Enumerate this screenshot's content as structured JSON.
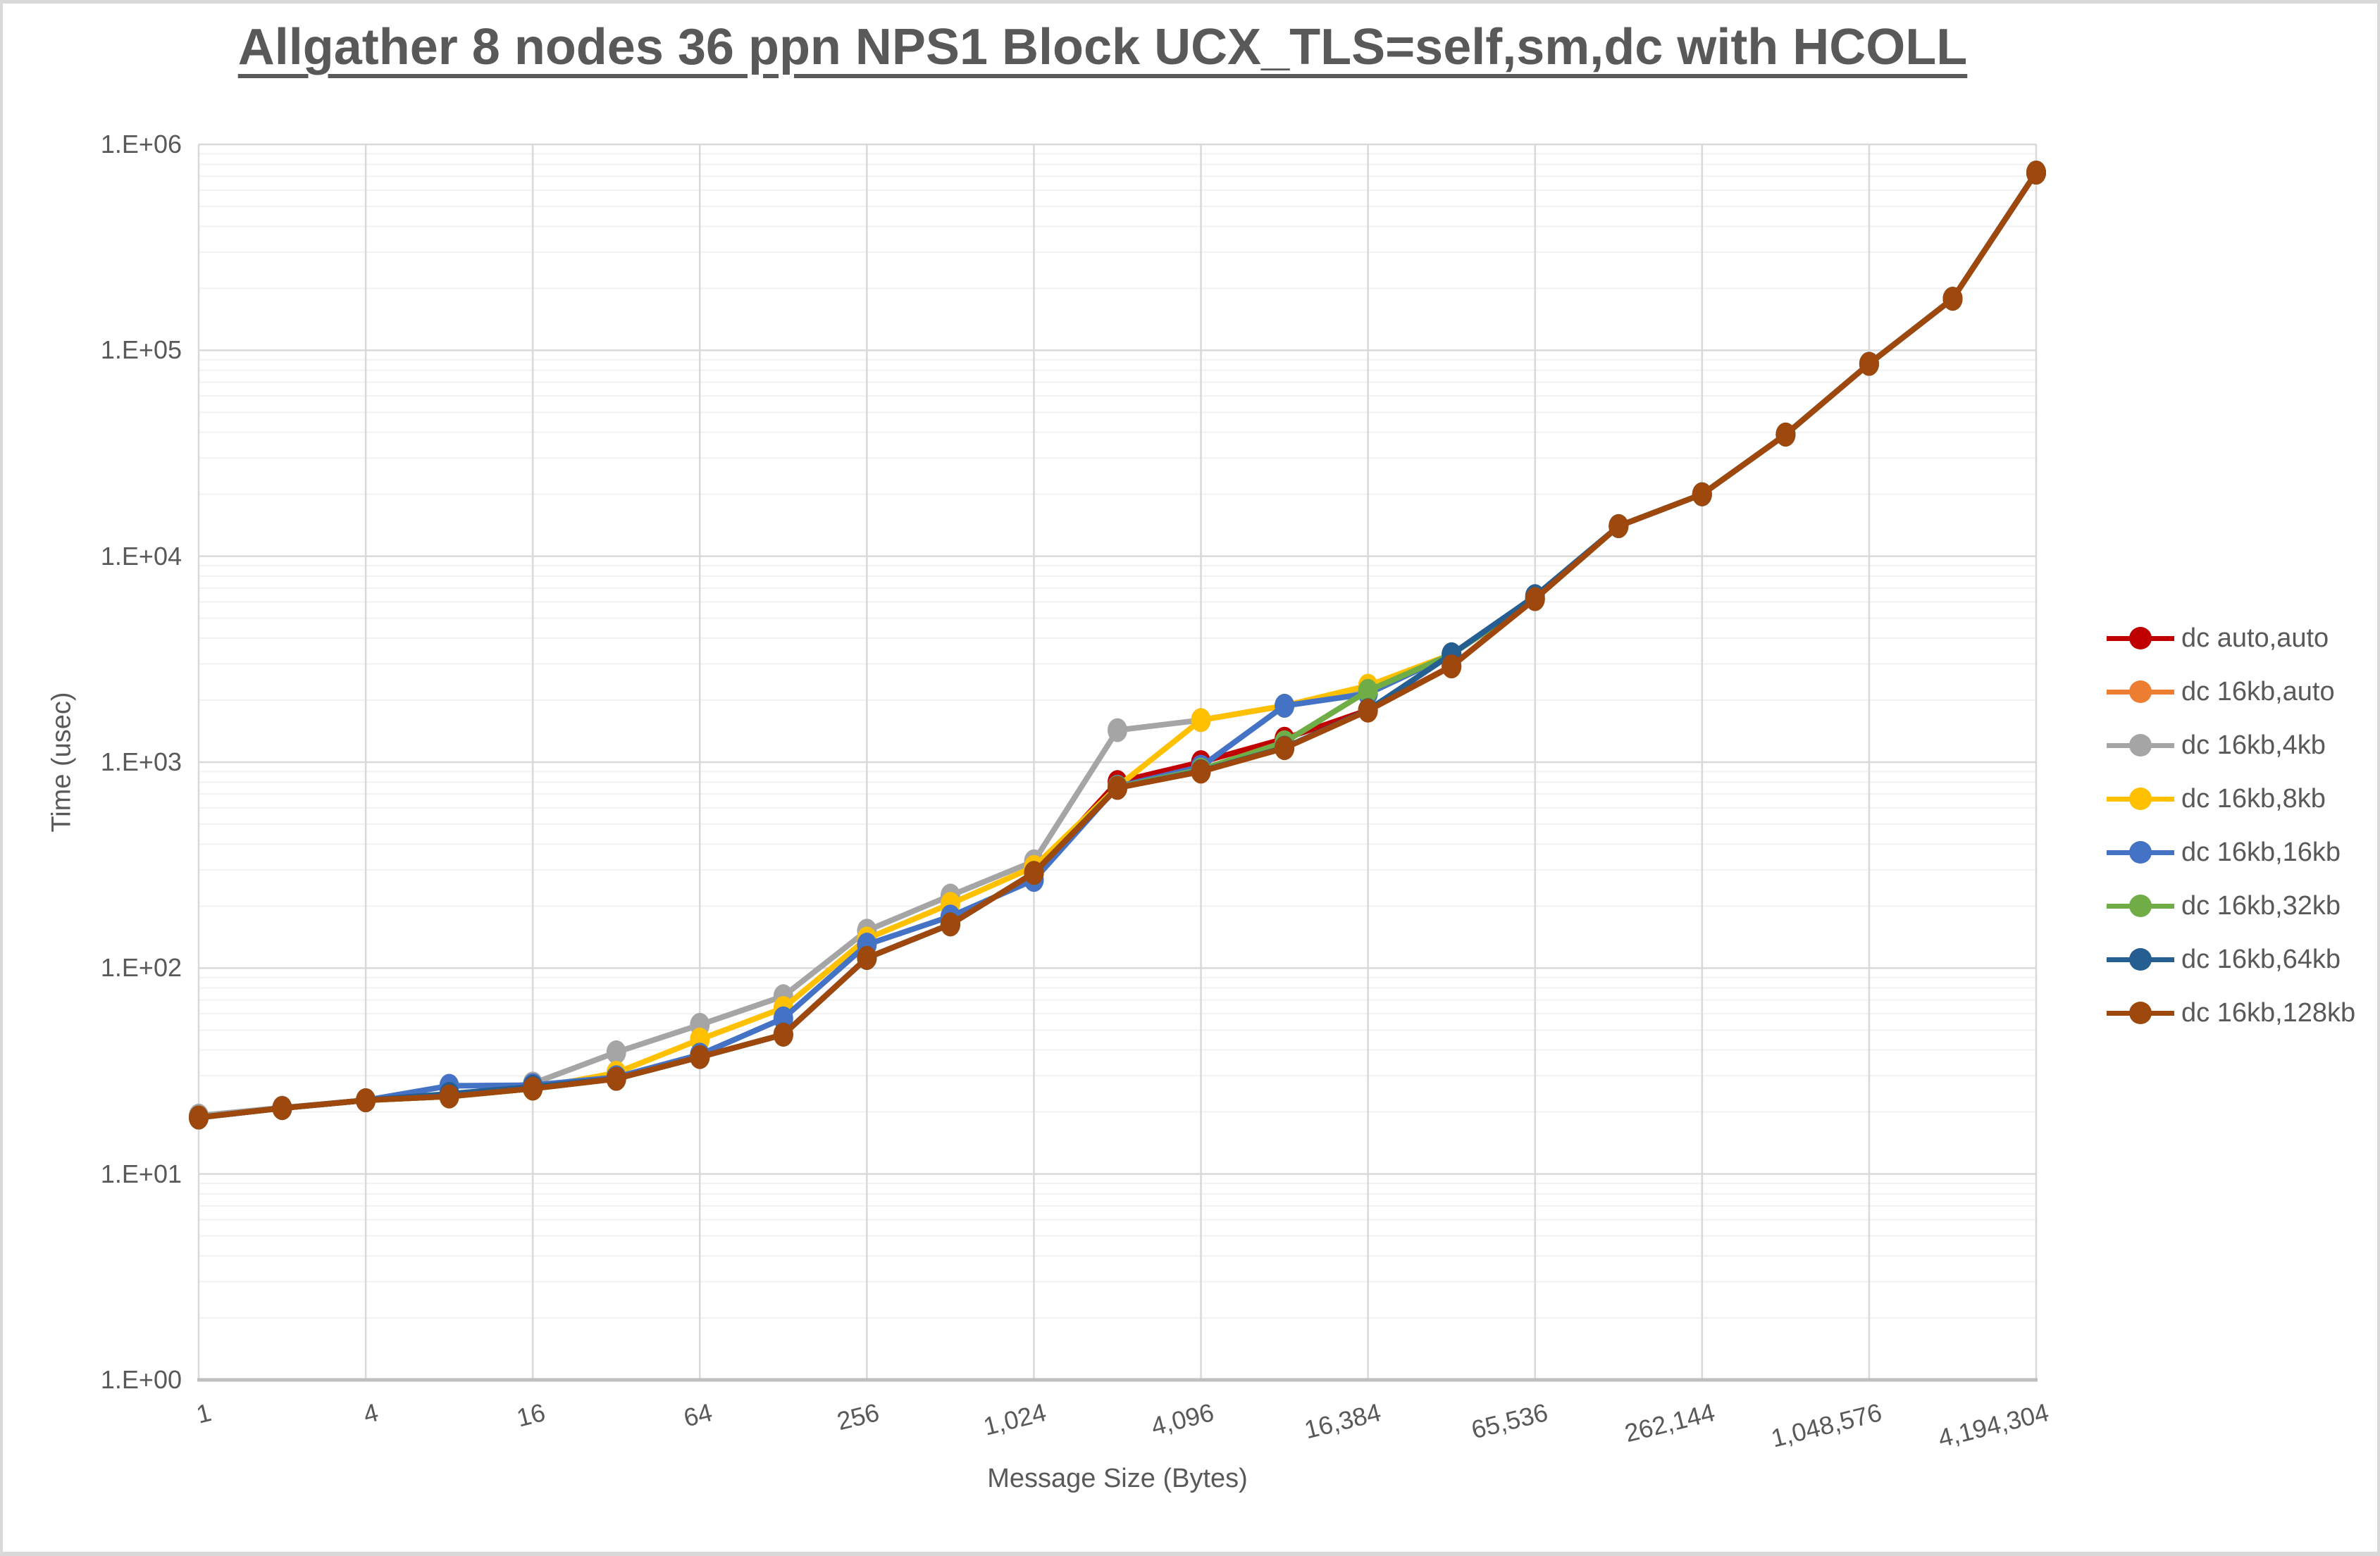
{
  "title": "Allgather 8 nodes 36 ppn NPS1 Block UCX_TLS=self,sm,dc with HCOLL",
  "colors": {
    "text": "#595959",
    "frame": "#D9D9D9",
    "plot_background": "#FFFFFF",
    "major_grid": "#D9D9D9",
    "minor_grid": "#F2F2F2",
    "axis_line": "#BFBFBF"
  },
  "chart_data": {
    "type": "line",
    "title": "Allgather 8 nodes 36 ppn NPS1 Block UCX_TLS=self,sm,dc with HCOLL",
    "xlabel": "Message Size (Bytes)",
    "ylabel": "Time (usec)",
    "x_scale": "log2",
    "y_scale": "log10",
    "ylim": [
      1,
      1000000
    ],
    "grid": "major-and-log-minor",
    "legend_position": "right",
    "y_tick_labels": [
      "1.E+00",
      "1.E+01",
      "1.E+02",
      "1.E+03",
      "1.E+04",
      "1.E+05",
      "1.E+06"
    ],
    "x_tick_values": [
      1,
      4,
      16,
      64,
      256,
      1024,
      4096,
      16384,
      65536,
      262144,
      1048576,
      4194304
    ],
    "x_tick_labels": [
      "1",
      "4",
      "16",
      "64",
      "256",
      "1,024",
      "4,096",
      "16,384",
      "65,536",
      "262,144",
      "1,048,576",
      "4,194,304"
    ],
    "x": [
      1,
      2,
      4,
      8,
      16,
      32,
      64,
      128,
      256,
      512,
      1024,
      2048,
      4096,
      8192,
      16384,
      32768,
      65536,
      131072,
      262144,
      524288,
      1048576,
      2097152,
      4194304
    ],
    "series": [
      {
        "name": "dc auto,auto",
        "color": "#C00000",
        "values": [
          18.8,
          20.9,
          22.8,
          23.8,
          26,
          29,
          37,
          47.5,
          112,
          163,
          290,
          800,
          1000,
          1300,
          1790,
          2930,
          6200,
          14000,
          20000,
          39000,
          86000,
          178000,
          730000
        ]
      },
      {
        "name": "dc 16kb,auto",
        "color": "#ED7D31",
        "values": [
          18.8,
          20.9,
          22.8,
          23.8,
          26,
          29,
          37,
          47.5,
          112,
          163,
          290,
          750,
          900,
          1170,
          1780,
          2920,
          6200,
          14000,
          20000,
          39000,
          86000,
          178000,
          730000
        ]
      },
      {
        "name": "dc 16kb,4kb",
        "color": "#A5A5A5",
        "values": [
          19.2,
          21,
          22.8,
          24,
          27.5,
          39,
          53,
          73,
          152,
          225,
          330,
          1430,
          1600,
          1880,
          2250,
          3340,
          6200,
          14000,
          20000,
          39000,
          86000,
          178000,
          730000
        ]
      },
      {
        "name": "dc 16kb,8kb",
        "color": "#FFC000",
        "values": [
          18.8,
          20.9,
          22.8,
          23.8,
          26,
          31,
          45,
          64,
          139,
          205,
          310,
          760,
          1600,
          1880,
          2350,
          3340,
          6200,
          14000,
          20000,
          39000,
          86000,
          178000,
          730000
        ]
      },
      {
        "name": "dc 16kb,16kb",
        "color": "#4472C4",
        "values": [
          18.8,
          20.9,
          22.8,
          26.8,
          27,
          29.5,
          38,
          57,
          130,
          178,
          268,
          760,
          950,
          1880,
          2150,
          3340,
          6200,
          14000,
          20000,
          39000,
          86000,
          178000,
          730000
        ]
      },
      {
        "name": "dc 16kb,32kb",
        "color": "#70AD47",
        "values": [
          18.8,
          20.9,
          22.8,
          23.8,
          26,
          29,
          37,
          47.5,
          112,
          163,
          290,
          755,
          920,
          1250,
          2220,
          3340,
          6200,
          14000,
          20000,
          39000,
          86000,
          178000,
          730000
        ]
      },
      {
        "name": "dc 16kb,64kb",
        "color": "#255E91",
        "values": [
          18.8,
          20.9,
          22.8,
          24.5,
          26.5,
          29,
          37,
          47.5,
          112,
          163,
          290,
          750,
          905,
          1175,
          1790,
          3340,
          6400,
          14000,
          20000,
          39000,
          86000,
          178000,
          730000
        ]
      },
      {
        "name": "dc 16kb,128kb",
        "color": "#9E480E",
        "values": [
          18.8,
          20.9,
          22.8,
          23.8,
          26,
          29,
          37,
          47.5,
          112,
          163,
          290,
          750,
          900,
          1170,
          1780,
          2920,
          6200,
          14000,
          20000,
          39000,
          86000,
          178000,
          730000
        ]
      }
    ]
  }
}
